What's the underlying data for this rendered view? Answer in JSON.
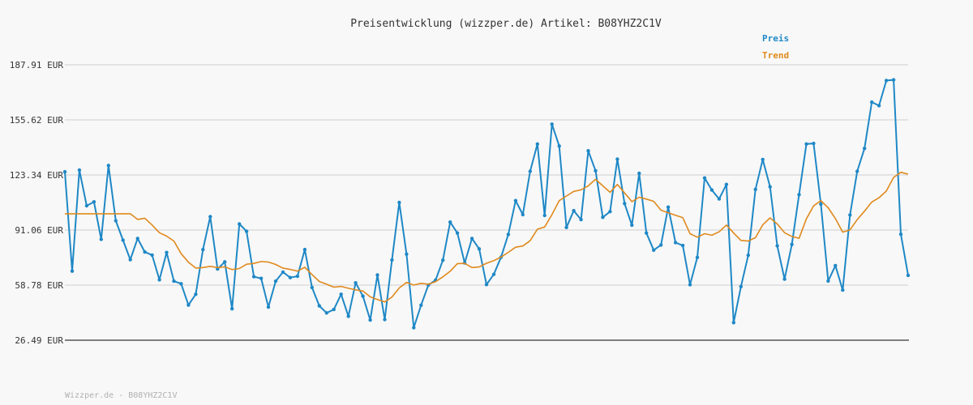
{
  "chart_data": {
    "type": "line",
    "title": "Preisentwicklung (wizzper.de) Artikel: B08YHZ2C1V",
    "footer": "Wizzper.de - B08YHZ2C1V",
    "yticks": [
      "187.91 EUR",
      "155.62 EUR",
      "123.34 EUR",
      "91.06 EUR",
      "58.78 EUR",
      "26.49 EUR"
    ],
    "ylim": [
      26.49,
      187.91
    ],
    "grid": true,
    "legend_position": "top-right",
    "colors": {
      "Preis": "#1f88c6",
      "Trend": "#e08a1e",
      "grid": "#e3e3e3",
      "axis": "#555555"
    },
    "series": [
      {
        "name": "Preis",
        "markers": true,
        "values": [
          125.2,
          67.0,
          126.2,
          105.3,
          107.6,
          85.6,
          128.9,
          96.5,
          85.1,
          73.7,
          86.1,
          78.2,
          76.4,
          61.9,
          77.9,
          61.1,
          59.6,
          47.1,
          53.4,
          79.6,
          98.9,
          68.2,
          72.4,
          44.9,
          94.6,
          90.3,
          63.7,
          62.7,
          45.9,
          61.1,
          66.4,
          63.2,
          64.0,
          79.6,
          57.4,
          46.6,
          42.5,
          44.5,
          53.4,
          40.5,
          60.1,
          52.3,
          38.3,
          64.7,
          38.6,
          73.5,
          107.2,
          76.9,
          33.8,
          47.0,
          58.8,
          61.7,
          73.4,
          95.7,
          89.3,
          71.8,
          86.1,
          80.0,
          59.1,
          65.1,
          75.1,
          88.5,
          108.3,
          100.1,
          125.5,
          141.5,
          99.6,
          153.1,
          140.3,
          92.6,
          102.4,
          97.2,
          137.5,
          125.8,
          98.5,
          101.9,
          132.6,
          106.6,
          93.9,
          124.3,
          89.3,
          79.3,
          82.3,
          104.5,
          83.7,
          82.0,
          59.0,
          75.0,
          121.6,
          114.5,
          109.3,
          117.8,
          36.8,
          57.9,
          76.3,
          114.9,
          132.4,
          116.4,
          81.8,
          62.3,
          82.6,
          111.8,
          141.5,
          141.8,
          106.2,
          61.2,
          70.2,
          55.9,
          99.9,
          125.5,
          138.9,
          166.0,
          164.0,
          178.7,
          179.1,
          88.6,
          64.5
        ]
      },
      {
        "name": "Trend",
        "markers": false,
        "values": [
          100.6,
          100.6,
          100.6,
          100.6,
          100.6,
          100.6,
          100.6,
          100.6,
          100.6,
          100.6,
          97.3,
          98.0,
          94.0,
          89.5,
          87.5,
          84.6,
          77.2,
          72.2,
          68.8,
          69.1,
          69.8,
          69.1,
          69.5,
          67.9,
          68.5,
          71.0,
          71.5,
          72.6,
          72.3,
          70.9,
          68.7,
          68.0,
          67.0,
          69.2,
          65.0,
          60.9,
          59.3,
          57.6,
          58.0,
          56.9,
          56.0,
          55.3,
          51.9,
          50.3,
          48.9,
          51.8,
          57.1,
          60.4,
          58.8,
          59.8,
          59.3,
          60.8,
          63.6,
          66.9,
          71.4,
          71.5,
          69.1,
          69.4,
          71.6,
          73.1,
          75.2,
          78.0,
          81.0,
          81.7,
          84.8,
          91.6,
          92.8,
          100.1,
          108.3,
          111.0,
          113.7,
          114.6,
          117.0,
          120.8,
          117.0,
          113.2,
          117.8,
          112.8,
          107.7,
          110.3,
          109.2,
          107.9,
          102.7,
          101.2,
          99.7,
          98.3,
          88.9,
          86.9,
          88.9,
          88.0,
          90.0,
          94.0,
          89.3,
          85.0,
          84.6,
          86.6,
          94.1,
          98.2,
          94.6,
          89.5,
          87.3,
          86.2,
          97.6,
          105.2,
          108.3,
          104.1,
          97.8,
          89.8,
          91.2,
          97.2,
          102.1,
          107.5,
          110.0,
          113.9,
          121.9,
          124.9,
          123.8
        ]
      }
    ]
  }
}
